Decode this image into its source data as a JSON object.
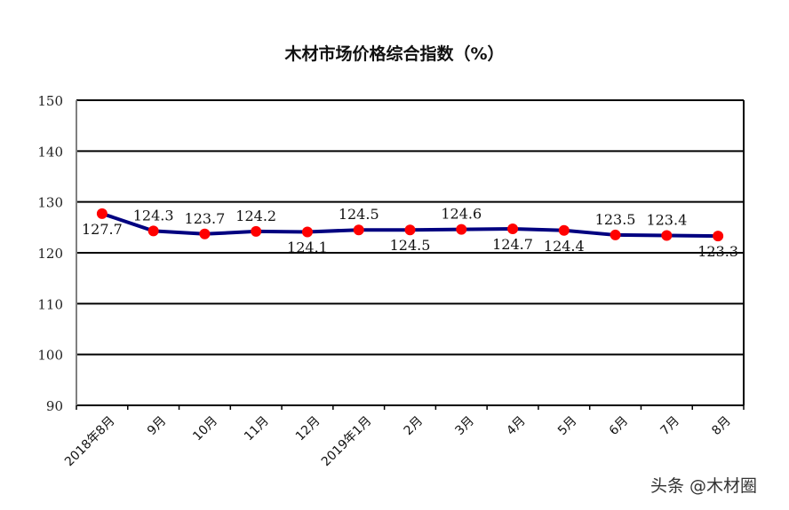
{
  "chart_data": {
    "type": "line",
    "title": "木材市场价格综合指数（%）",
    "xlabel": "",
    "ylabel": "",
    "ylim": [
      90,
      150
    ],
    "yticks": [
      90,
      100,
      110,
      120,
      130,
      140,
      150
    ],
    "grid": true,
    "legend": null,
    "categories": [
      "2018年8月",
      "9月",
      "10月",
      "11月",
      "12月",
      "2019年1月",
      "2月",
      "3月",
      "4月",
      "5月",
      "6月",
      "7月",
      "8月"
    ],
    "series": [
      {
        "name": "木材市场价格综合指数",
        "values": [
          127.7,
          124.3,
          123.7,
          124.2,
          124.1,
          124.5,
          124.5,
          124.6,
          124.7,
          124.4,
          123.5,
          123.4,
          123.3
        ],
        "data_labels": [
          "127.7",
          "124.3",
          "123.7",
          "124.2",
          "124.1",
          "124.5",
          "124.5",
          "124.6",
          "124.7",
          "124.4",
          "123.5",
          "123.4",
          "123.3"
        ],
        "label_position": [
          "below",
          "above",
          "above",
          "above",
          "below",
          "above",
          "below",
          "above",
          "below",
          "below",
          "above",
          "above",
          "below"
        ]
      }
    ],
    "colors": {
      "line": "#000080",
      "marker": "#ff0000",
      "grid": "#000000",
      "axis": "#808080"
    }
  },
  "watermark": "头条 @木材圈"
}
